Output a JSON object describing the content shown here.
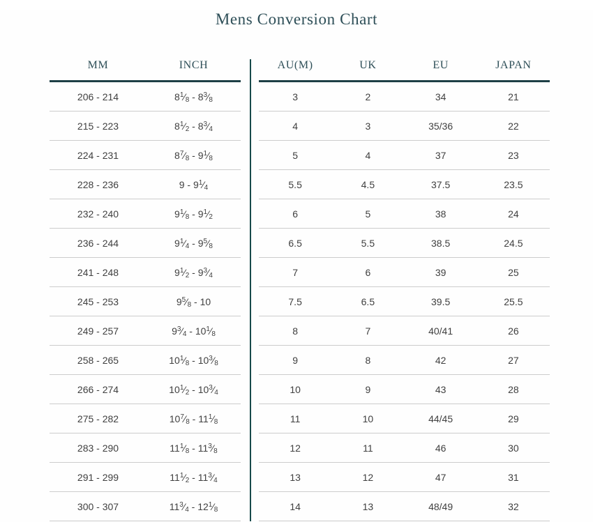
{
  "title": "Mens Conversion Chart",
  "colors": {
    "accent_teal": "#2d4e57",
    "header_rule": "#1d3f46",
    "divider": "#17494a",
    "row_rule": "#cccccc",
    "body_text": "#3f3f3f",
    "background": "#fefefe"
  },
  "chart_data": {
    "type": "table",
    "title": "Mens Conversion Chart",
    "left_columns": [
      "MM",
      "INCH"
    ],
    "right_columns": [
      "AU(M)",
      "UK",
      "EU",
      "JAPAN"
    ],
    "rows": [
      [
        "206 - 214",
        "8 1/8 - 8 3/8",
        "3",
        "2",
        "34",
        "21"
      ],
      [
        "215 - 223",
        "8 1/2 - 8 3/4",
        "4",
        "3",
        "35/36",
        "22"
      ],
      [
        "224 - 231",
        "8 7/8 - 9 1/8",
        "5",
        "4",
        "37",
        "23"
      ],
      [
        "228 - 236",
        "9 - 9 1/4",
        "5.5",
        "4.5",
        "37.5",
        "23.5"
      ],
      [
        "232 - 240",
        "9 1/8 - 9 1/2",
        "6",
        "5",
        "38",
        "24"
      ],
      [
        "236 - 244",
        "9 1/4 - 9 5/8",
        "6.5",
        "5.5",
        "38.5",
        "24.5"
      ],
      [
        "241 - 248",
        "9 1/2 - 9 3/4",
        "7",
        "6",
        "39",
        "25"
      ],
      [
        "245 - 253",
        "9 5/8 - 10",
        "7.5",
        "6.5",
        "39.5",
        "25.5"
      ],
      [
        "249 - 257",
        "9 3/4 - 10 1/8",
        "8",
        "7",
        "40/41",
        "26"
      ],
      [
        "258 - 265",
        "10 1/8 - 10 3/8",
        "9",
        "8",
        "42",
        "27"
      ],
      [
        "266 - 274",
        "10 1/2 - 10 3/4",
        "10",
        "9",
        "43",
        "28"
      ],
      [
        "275 - 282",
        "10 7/8 - 11 1/8",
        "11",
        "10",
        "44/45",
        "29"
      ],
      [
        "283 - 290",
        "11 1/8 - 11 3/8",
        "12",
        "11",
        "46",
        "30"
      ],
      [
        "291 - 299",
        "11 1/2 - 11 3/4",
        "13",
        "12",
        "47",
        "31"
      ],
      [
        "300 - 307",
        "11 3/4 - 12 1/8",
        "14",
        "13",
        "48/49",
        "32"
      ]
    ]
  }
}
